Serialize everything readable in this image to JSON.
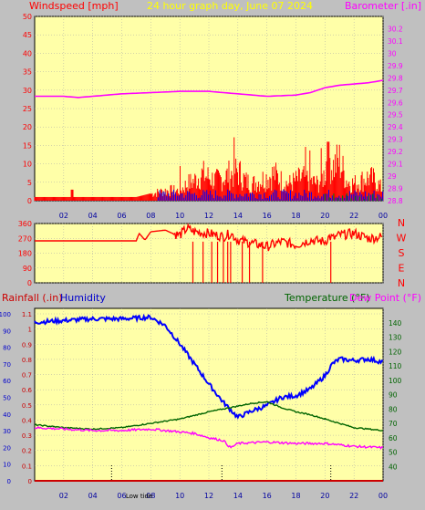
{
  "header": {
    "title": "24 hour graph day, June 07 2024",
    "wind_label": "Windspeed [mph]",
    "baro_label": "Barometer [.in]",
    "rain_label": "Rainfall (.in)",
    "humidity_label": "Humidity",
    "temp_label": "Temperature (°F)",
    "dew_label": "Dew Point (°F)",
    "low_tide_label": "Low tide"
  },
  "colors": {
    "background": "#c0c0c0",
    "plot_bg": "#ffffa8",
    "wind": "#ff0000",
    "wind_secondary": "#0000ff",
    "wind_tertiary": "#008000",
    "barometer": "#ff00ff",
    "direction": "#ff0000",
    "rain": "#cc0000",
    "humidity": "#0000ff",
    "temperature": "#006400",
    "dew_point": "#ff00ff",
    "title": "#ffff00"
  },
  "chart_data": [
    {
      "type": "line",
      "title": "24 hour graph day, June 07 2024",
      "xlabel": "",
      "ylabel": "Windspeed [mph]",
      "y2label": "Barometer [.in]",
      "x_ticks": [
        "02",
        "04",
        "06",
        "08",
        "10",
        "12",
        "14",
        "16",
        "18",
        "20",
        "22",
        "00"
      ],
      "ylim": [
        0,
        50
      ],
      "y_ticks": [
        "0",
        "5",
        "10",
        "15",
        "20",
        "25",
        "30",
        "35",
        "40",
        "45",
        "50"
      ],
      "y2lim": [
        28.8,
        30.3
      ],
      "y2_ticks": [
        "28.8",
        "28.9",
        "29",
        "29.1",
        "29.2",
        "29.3",
        "29.4",
        "29.5",
        "29.6",
        "29.7",
        "29.8",
        "29.9",
        "30",
        "30.1",
        "30.2"
      ],
      "grid": true,
      "series": [
        {
          "name": "Windspeed",
          "x": [
            0,
            1,
            2,
            3,
            4,
            5,
            6,
            7,
            8,
            9,
            10,
            10.5,
            11,
            11.5,
            12,
            12.5,
            13,
            13.5,
            14,
            14.5,
            15,
            15.5,
            16,
            16.5,
            17,
            17.5,
            18,
            18.5,
            19,
            19.5,
            20,
            20.2,
            20.5,
            21,
            21.5,
            22,
            22.5,
            23,
            23.5,
            24
          ],
          "values": [
            1,
            1,
            1,
            1,
            1,
            1,
            1,
            1,
            2,
            3,
            3,
            5,
            6,
            8,
            7,
            6,
            7,
            8,
            9,
            6,
            5,
            6,
            7,
            8,
            6,
            5,
            6,
            7,
            6,
            5,
            8,
            15,
            10,
            12,
            6,
            5,
            6,
            7,
            6,
            3
          ]
        },
        {
          "name": "Barometer",
          "x": [
            0,
            2,
            3,
            4,
            6,
            8,
            10,
            12,
            14,
            16,
            18,
            19,
            20,
            21,
            22,
            23,
            24
          ],
          "values": [
            29.65,
            29.65,
            29.64,
            29.65,
            29.67,
            29.68,
            29.69,
            29.69,
            29.67,
            29.65,
            29.66,
            29.68,
            29.72,
            29.74,
            29.75,
            29.76,
            29.78
          ]
        }
      ]
    },
    {
      "type": "line",
      "ylabel": "Wind direction",
      "ylim": [
        0,
        360
      ],
      "y_ticks": [
        "0",
        "90",
        "180",
        "270",
        "360"
      ],
      "right_labels": [
        "N",
        "W",
        "S",
        "E",
        "N"
      ],
      "x_ticks": [
        "02",
        "04",
        "06",
        "08",
        "10",
        "12",
        "14",
        "16",
        "18",
        "20",
        "22",
        "00"
      ],
      "grid": true,
      "series": [
        {
          "name": "Wind direction",
          "x": [
            0,
            2,
            4,
            6,
            7,
            7.2,
            7.6,
            8,
            9,
            9.5,
            10,
            10.5,
            11,
            12,
            13,
            13.5,
            14,
            15,
            16,
            17,
            18,
            19,
            20,
            20.3,
            20.6,
            21,
            22,
            23,
            24
          ],
          "values": [
            255,
            255,
            255,
            255,
            255,
            300,
            260,
            310,
            320,
            300,
            290,
            330,
            310,
            300,
            280,
            300,
            260,
            240,
            220,
            250,
            230,
            260,
            250,
            280,
            270,
            290,
            300,
            270,
            280
          ]
        }
      ]
    },
    {
      "type": "line",
      "ylabel": "Rainfall (.in)",
      "y2label": "Temperature (°F)",
      "x_ticks": [
        "02",
        "04",
        "06",
        "08",
        "10",
        "12",
        "14",
        "16",
        "18",
        "20",
        "22",
        "00"
      ],
      "left_ticks_humidity": [
        "0",
        "10",
        "20",
        "30",
        "40",
        "50",
        "60",
        "70",
        "80",
        "90",
        "100"
      ],
      "left_ticks_rain": [
        "0",
        "0.1",
        "0.2",
        "0.3",
        "0.4",
        "0.5",
        "0.6",
        "0.7",
        "0.8",
        "0.9",
        "1",
        "1.1"
      ],
      "right_ticks": [
        "40",
        "50",
        "60",
        "70",
        "80",
        "90",
        "100",
        "110",
        "120",
        "130",
        "140"
      ],
      "humidity_lim": [
        0,
        100
      ],
      "rain_lim": [
        0,
        1.1
      ],
      "temp_lim": [
        30,
        150
      ],
      "low_tide_times": [
        5.3,
        12.9,
        20.4
      ],
      "grid": true,
      "series": [
        {
          "name": "Humidity",
          "x": [
            0,
            2,
            4,
            6,
            8,
            9,
            10,
            11,
            12,
            13,
            14,
            15,
            16,
            17,
            18,
            19,
            20,
            20.5,
            21,
            22,
            23,
            24
          ],
          "values": [
            95,
            96,
            97,
            97,
            98,
            93,
            82,
            70,
            58,
            47,
            38,
            42,
            45,
            50,
            51,
            55,
            63,
            70,
            73,
            72,
            73,
            71
          ]
        },
        {
          "name": "Temperature",
          "x": [
            0,
            2,
            4,
            6,
            8,
            10,
            12,
            14,
            15,
            16,
            17,
            18,
            19,
            20,
            21,
            22,
            23,
            24
          ],
          "values": [
            69,
            67,
            66,
            67,
            70,
            73,
            78,
            82,
            84,
            85,
            81,
            78,
            76,
            73,
            70,
            67,
            66,
            65
          ]
        },
        {
          "name": "Dew Point",
          "x": [
            0,
            2,
            4,
            6,
            8,
            10,
            11,
            12,
            13,
            13.5,
            14,
            16,
            18,
            20,
            22,
            24
          ],
          "values": [
            67,
            66,
            65,
            65,
            66,
            64,
            63,
            60,
            58,
            53,
            56,
            57,
            56,
            56,
            54,
            53
          ]
        },
        {
          "name": "Rainfall",
          "x": [
            0,
            24
          ],
          "values": [
            0,
            0
          ]
        }
      ]
    }
  ]
}
